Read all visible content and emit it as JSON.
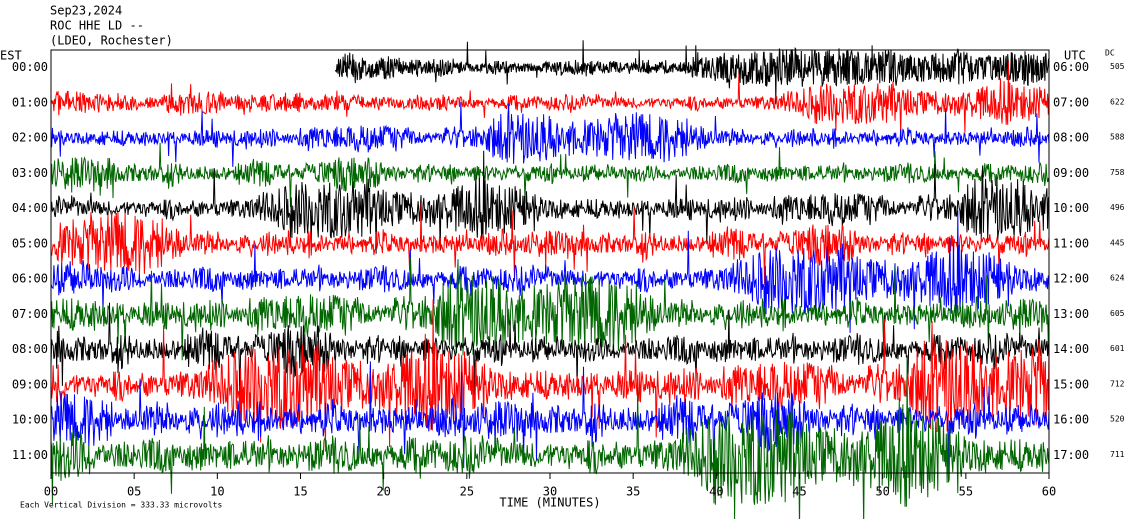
{
  "header": {
    "lines": [
      "Sep23,2024",
      "ROC HHE LD --",
      "(LDEO, Rochester)"
    ]
  },
  "left_axis": {
    "label": "EST",
    "rows": [
      "00:00",
      "01:00",
      "02:00",
      "03:00",
      "04:00",
      "05:00",
      "06:00",
      "07:00",
      "08:00",
      "09:00",
      "10:00",
      "11:00"
    ]
  },
  "right_axis": {
    "label": "UTC",
    "dc_label": "DC",
    "rows": [
      "06:00",
      "07:00",
      "08:00",
      "09:00",
      "10:00",
      "11:00",
      "12:00",
      "13:00",
      "14:00",
      "15:00",
      "16:00",
      "17:00"
    ],
    "dc": [
      505,
      622,
      588,
      758,
      496,
      445,
      624,
      605,
      601,
      712,
      520,
      711
    ]
  },
  "x_axis": {
    "label": "TIME (MINUTES)",
    "xlim": [
      0,
      60
    ],
    "ticks": [
      {
        "value": 0,
        "label": "00"
      },
      {
        "value": 5,
        "label": "05"
      },
      {
        "value": 10,
        "label": "10"
      },
      {
        "value": 15,
        "label": "15"
      },
      {
        "value": 20,
        "label": "20"
      },
      {
        "value": 25,
        "label": "25"
      },
      {
        "value": 30,
        "label": "30"
      },
      {
        "value": 35,
        "label": "35"
      },
      {
        "value": 40,
        "label": "40"
      },
      {
        "value": 45,
        "label": "45"
      },
      {
        "value": 50,
        "label": "50"
      },
      {
        "value": 55,
        "label": "55"
      },
      {
        "value": 60,
        "label": "60"
      }
    ]
  },
  "footer": "Each Vertical Division = 333.33 microvolts",
  "trace_colors": [
    "#000000",
    "#ff0000",
    "#0000ff",
    "#006600"
  ]
}
